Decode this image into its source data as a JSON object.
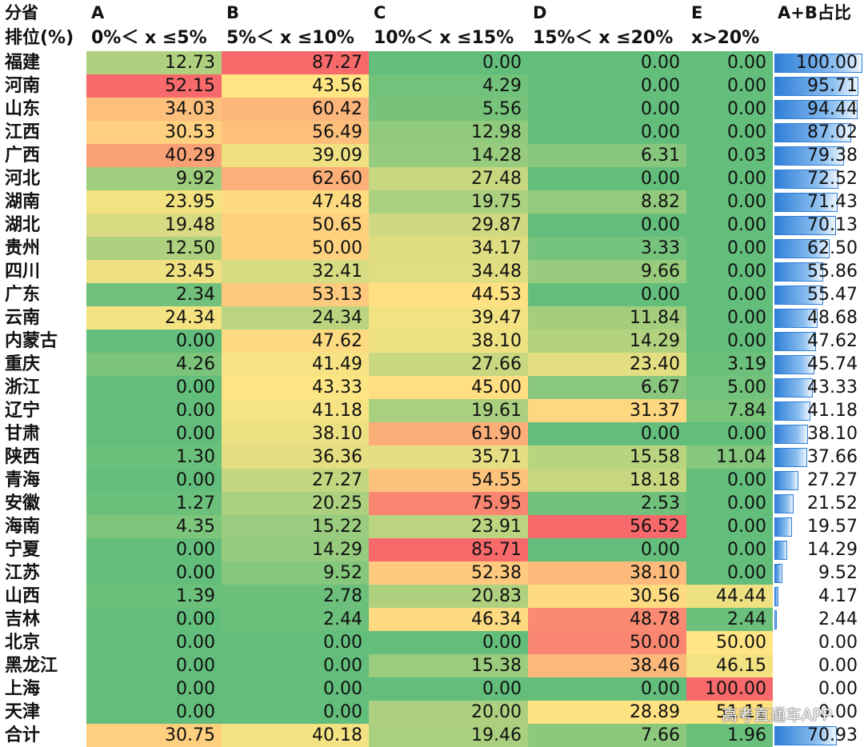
{
  "header": {
    "row1": [
      "分省",
      "A",
      "B",
      "C",
      "D",
      "E",
      "A+B占比"
    ],
    "row2": [
      "排位(%)",
      "0%＜ x ≤5%",
      "5%＜ x ≤10%",
      "10%＜ x ≤15%",
      "15%＜ x ≤20%",
      "x>20%",
      ""
    ]
  },
  "watermark": "高考直通车APP",
  "colors": {
    "low": "#63be7b",
    "mid": "#ffe583",
    "high": "#f8696b",
    "bar": "#2f7fd8"
  },
  "chart_data": {
    "type": "table",
    "columns": [
      "分省",
      "A",
      "B",
      "C",
      "D",
      "E",
      "A+B占比"
    ],
    "rows": [
      {
        "name": "福建",
        "values": [
          12.73,
          87.27,
          0.0,
          0.0,
          0.0
        ],
        "ab": 100.0
      },
      {
        "name": "河南",
        "values": [
          52.15,
          43.56,
          4.29,
          0.0,
          0.0
        ],
        "ab": 95.71
      },
      {
        "name": "山东",
        "values": [
          34.03,
          60.42,
          5.56,
          0.0,
          0.0
        ],
        "ab": 94.44
      },
      {
        "name": "江西",
        "values": [
          30.53,
          56.49,
          12.98,
          0.0,
          0.0
        ],
        "ab": 87.02
      },
      {
        "name": "广西",
        "values": [
          40.29,
          39.09,
          14.28,
          6.31,
          0.03
        ],
        "ab": 79.38
      },
      {
        "name": "河北",
        "values": [
          9.92,
          62.6,
          27.48,
          0.0,
          0.0
        ],
        "ab": 72.52
      },
      {
        "name": "湖南",
        "values": [
          23.95,
          47.48,
          19.75,
          8.82,
          0.0
        ],
        "ab": 71.43
      },
      {
        "name": "湖北",
        "values": [
          19.48,
          50.65,
          29.87,
          0.0,
          0.0
        ],
        "ab": 70.13
      },
      {
        "name": "贵州",
        "values": [
          12.5,
          50.0,
          34.17,
          3.33,
          0.0
        ],
        "ab": 62.5
      },
      {
        "name": "四川",
        "values": [
          23.45,
          32.41,
          34.48,
          9.66,
          0.0
        ],
        "ab": 55.86
      },
      {
        "name": "广东",
        "values": [
          2.34,
          53.13,
          44.53,
          0.0,
          0.0
        ],
        "ab": 55.47
      },
      {
        "name": "云南",
        "values": [
          24.34,
          24.34,
          39.47,
          11.84,
          0.0
        ],
        "ab": 48.68
      },
      {
        "name": "内蒙古",
        "values": [
          0.0,
          47.62,
          38.1,
          14.29,
          0.0
        ],
        "ab": 47.62
      },
      {
        "name": "重庆",
        "values": [
          4.26,
          41.49,
          27.66,
          23.4,
          3.19
        ],
        "ab": 45.74
      },
      {
        "name": "浙江",
        "values": [
          0.0,
          43.33,
          45.0,
          6.67,
          5.0
        ],
        "ab": 43.33
      },
      {
        "name": "辽宁",
        "values": [
          0.0,
          41.18,
          19.61,
          31.37,
          7.84
        ],
        "ab": 41.18
      },
      {
        "name": "甘肃",
        "values": [
          0.0,
          38.1,
          61.9,
          0.0,
          0.0
        ],
        "ab": 38.1
      },
      {
        "name": "陕西",
        "values": [
          1.3,
          36.36,
          35.71,
          15.58,
          11.04
        ],
        "ab": 37.66
      },
      {
        "name": "青海",
        "values": [
          0.0,
          27.27,
          54.55,
          18.18,
          0.0
        ],
        "ab": 27.27
      },
      {
        "name": "安徽",
        "values": [
          1.27,
          20.25,
          75.95,
          2.53,
          0.0
        ],
        "ab": 21.52
      },
      {
        "name": "海南",
        "values": [
          4.35,
          15.22,
          23.91,
          56.52,
          0.0
        ],
        "ab": 19.57
      },
      {
        "name": "宁夏",
        "values": [
          0.0,
          14.29,
          85.71,
          0.0,
          0.0
        ],
        "ab": 14.29
      },
      {
        "name": "江苏",
        "values": [
          0.0,
          9.52,
          52.38,
          38.1,
          0.0
        ],
        "ab": 9.52
      },
      {
        "name": "山西",
        "values": [
          1.39,
          2.78,
          20.83,
          30.56,
          44.44
        ],
        "ab": 4.17
      },
      {
        "name": "吉林",
        "values": [
          0.0,
          2.44,
          46.34,
          48.78,
          2.44
        ],
        "ab": 2.44
      },
      {
        "name": "北京",
        "values": [
          0.0,
          0.0,
          0.0,
          50.0,
          50.0
        ],
        "ab": 0.0
      },
      {
        "name": "黑龙江",
        "values": [
          0.0,
          0.0,
          15.38,
          38.46,
          46.15
        ],
        "ab": 0.0
      },
      {
        "name": "上海",
        "values": [
          0.0,
          0.0,
          0.0,
          0.0,
          100.0
        ],
        "ab": 0.0
      },
      {
        "name": "天津",
        "values": [
          0.0,
          0.0,
          20.0,
          28.89,
          51.11
        ],
        "ab": 0.0
      },
      {
        "name": "合计",
        "values": [
          30.75,
          40.18,
          19.46,
          7.66,
          1.96
        ],
        "ab": 70.93
      }
    ]
  }
}
